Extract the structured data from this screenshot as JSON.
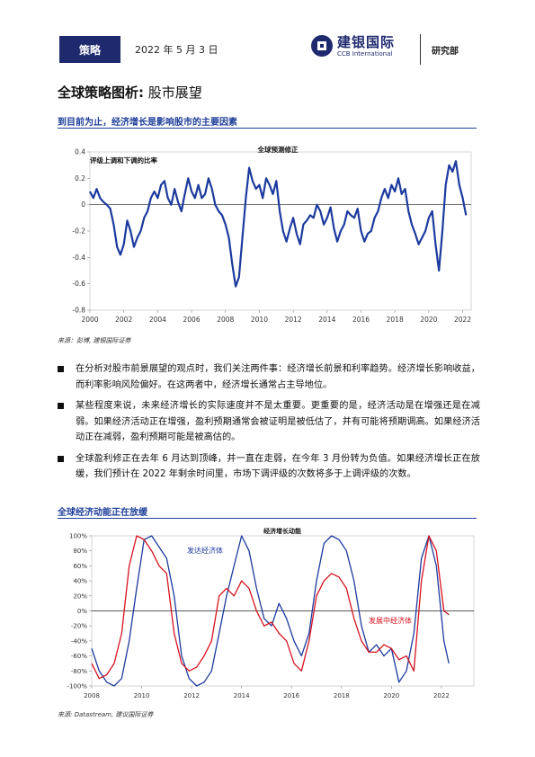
{
  "header": {
    "tag": "策略",
    "date": "2022 年 5 月 3 日",
    "brand_cn": "建银国际",
    "brand_en": "CCB International",
    "dept": "研究部"
  },
  "title": {
    "main": "全球策略图析:",
    "sub": " 股市展望"
  },
  "section1": {
    "heading": "到目前为止，经济增长是影响股市的主要因素",
    "source": "来源：彭博, 建银国际证券"
  },
  "section2": {
    "heading": "全球经济动能正在放缓",
    "source": "来源: Datastream, 建议国际证券"
  },
  "bullets": [
    "在分析对股市前景展望的观点时，我们关注两件事：经济增长前景和利率趋势。经济增长影响收益，而利率影响风险偏好。在这两者中，经济增长通常占主导地位。",
    "某些程度来说，未来经济增长的实际速度并不是太重要。更重要的是，经济活动是在增强还是在减弱。如果经济活动正在增强，盈利预期通常会被证明是被低估了，并有可能将预期调高。如果经济活动正在减弱，盈利预期可能是被高估的。",
    "全球盈利修正在去年 6 月达到顶峰，并一直在走弱，在今年 3 月份转为负值。如果经济增长正在放缓，我们预计在 2022 年剩余时间里，市场下调评级的次数将多于上调评级的次数。"
  ],
  "colors": {
    "navy": "#1f2a6e",
    "series_blue": "#1c3a9e",
    "series_red": "#d6121f",
    "heading_blue": "#1f3f9a"
  },
  "chart_data": [
    {
      "type": "line",
      "title": "全球预测修正",
      "ylabel": "评级上调和下调的比率",
      "xlim": [
        2000,
        2022.5
      ],
      "ylim": [
        -0.8,
        0.4
      ],
      "yticks": [
        0.4,
        0.2,
        0,
        -0.2,
        -0.4,
        -0.6,
        -0.8
      ],
      "yticklabels": [
        "0.4",
        "0.2",
        "0",
        "-0.2",
        "-0.4",
        "-0.6",
        "-0.8"
      ],
      "xticks": [
        2000,
        2002,
        2004,
        2006,
        2008,
        2010,
        2012,
        2014,
        2016,
        2018,
        2020,
        2022
      ],
      "grid": false,
      "series": [
        {
          "color": "#1c3a9e",
          "x": [
            2000.0,
            2000.2,
            2000.4,
            2000.6,
            2000.8,
            2001.0,
            2001.2,
            2001.4,
            2001.6,
            2001.8,
            2002.0,
            2002.2,
            2002.4,
            2002.6,
            2002.8,
            2003.0,
            2003.2,
            2003.4,
            2003.6,
            2003.8,
            2004.0,
            2004.2,
            2004.4,
            2004.6,
            2004.8,
            2005.0,
            2005.2,
            2005.4,
            2005.6,
            2005.8,
            2006.0,
            2006.2,
            2006.4,
            2006.6,
            2006.8,
            2007.0,
            2007.2,
            2007.4,
            2007.6,
            2007.8,
            2008.0,
            2008.2,
            2008.4,
            2008.6,
            2008.8,
            2009.0,
            2009.2,
            2009.4,
            2009.6,
            2009.8,
            2010.0,
            2010.2,
            2010.4,
            2010.6,
            2010.8,
            2011.0,
            2011.2,
            2011.4,
            2011.6,
            2011.8,
            2012.0,
            2012.2,
            2012.4,
            2012.6,
            2012.8,
            2013.0,
            2013.2,
            2013.4,
            2013.6,
            2013.8,
            2014.0,
            2014.2,
            2014.4,
            2014.6,
            2014.8,
            2015.0,
            2015.2,
            2015.4,
            2015.6,
            2015.8,
            2016.0,
            2016.2,
            2016.4,
            2016.6,
            2016.8,
            2017.0,
            2017.2,
            2017.4,
            2017.6,
            2017.8,
            2018.0,
            2018.2,
            2018.4,
            2018.6,
            2018.8,
            2019.0,
            2019.2,
            2019.4,
            2019.6,
            2019.8,
            2020.0,
            2020.2,
            2020.4,
            2020.6,
            2020.8,
            2021.0,
            2021.2,
            2021.4,
            2021.6,
            2021.8,
            2022.0,
            2022.2
          ],
          "y": [
            0.1,
            0.05,
            0.12,
            0.05,
            0.02,
            0.0,
            -0.03,
            -0.15,
            -0.32,
            -0.38,
            -0.3,
            -0.12,
            -0.2,
            -0.32,
            -0.25,
            -0.2,
            -0.1,
            -0.05,
            0.05,
            0.1,
            0.05,
            0.15,
            0.18,
            0.05,
            0.0,
            0.12,
            0.02,
            -0.05,
            0.08,
            0.2,
            0.1,
            0.05,
            0.15,
            0.05,
            0.08,
            0.2,
            0.12,
            0.0,
            -0.05,
            -0.08,
            -0.15,
            -0.25,
            -0.45,
            -0.62,
            -0.55,
            -0.25,
            0.05,
            0.28,
            0.18,
            0.12,
            0.15,
            0.05,
            0.2,
            0.15,
            0.08,
            0.18,
            -0.05,
            -0.2,
            -0.28,
            -0.18,
            -0.1,
            -0.22,
            -0.3,
            -0.15,
            -0.12,
            -0.08,
            -0.1,
            0.0,
            -0.05,
            -0.15,
            -0.1,
            -0.02,
            -0.18,
            -0.28,
            -0.2,
            -0.15,
            -0.05,
            -0.08,
            -0.1,
            -0.03,
            -0.2,
            -0.28,
            -0.22,
            -0.2,
            -0.1,
            -0.05,
            0.05,
            0.12,
            0.05,
            0.15,
            0.1,
            0.2,
            0.08,
            0.12,
            -0.05,
            -0.15,
            -0.22,
            -0.3,
            -0.25,
            -0.2,
            -0.1,
            -0.05,
            -0.3,
            -0.5,
            -0.2,
            0.15,
            0.3,
            0.25,
            0.33,
            0.15,
            0.05,
            -0.08
          ]
        }
      ]
    },
    {
      "type": "line",
      "title": "经济增长动能",
      "xlim": [
        2008,
        2023.3
      ],
      "ylim": [
        -100,
        100
      ],
      "yticks": [
        100,
        80,
        60,
        40,
        20,
        0,
        -20,
        -40,
        -60,
        -80,
        -100
      ],
      "yticklabels": [
        "100%",
        "80%",
        "60%",
        "40%",
        "20%",
        "0%",
        "-20%",
        "-40%",
        "-60%",
        "-80%",
        "-100%"
      ],
      "xticks": [
        2008,
        2010,
        2012,
        2014,
        2016,
        2018,
        2020,
        2022
      ],
      "grid": false,
      "annotations": [
        "发达经济体",
        "发展中经济体"
      ],
      "series": [
        {
          "name": "发达经济体",
          "color": "#1c3a9e",
          "x": [
            2008.0,
            2008.3,
            2008.6,
            2008.9,
            2009.2,
            2009.5,
            2009.8,
            2010.1,
            2010.4,
            2010.7,
            2011.0,
            2011.3,
            2011.6,
            2011.9,
            2012.2,
            2012.5,
            2012.8,
            2013.1,
            2013.4,
            2013.7,
            2014.0,
            2014.3,
            2014.6,
            2014.9,
            2015.2,
            2015.5,
            2015.8,
            2016.1,
            2016.4,
            2016.7,
            2017.0,
            2017.3,
            2017.6,
            2017.9,
            2018.2,
            2018.5,
            2018.8,
            2019.1,
            2019.4,
            2019.7,
            2020.0,
            2020.3,
            2020.6,
            2020.9,
            2021.2,
            2021.5,
            2021.8,
            2022.1,
            2022.3
          ],
          "y": [
            -50,
            -80,
            -95,
            -100,
            -90,
            -40,
            30,
            95,
            100,
            85,
            70,
            20,
            -60,
            -90,
            -100,
            -95,
            -80,
            -30,
            20,
            60,
            100,
            80,
            30,
            -10,
            -20,
            10,
            -10,
            -40,
            -60,
            -30,
            40,
            90,
            100,
            95,
            80,
            40,
            -20,
            -55,
            -45,
            -60,
            -50,
            -95,
            -80,
            -30,
            70,
            100,
            60,
            -40,
            -70
          ]
        },
        {
          "name": "发展中经济体",
          "color": "#d6121f",
          "x": [
            2008.0,
            2008.3,
            2008.6,
            2008.9,
            2009.2,
            2009.5,
            2009.8,
            2010.1,
            2010.4,
            2010.7,
            2011.0,
            2011.3,
            2011.6,
            2011.9,
            2012.2,
            2012.5,
            2012.8,
            2013.1,
            2013.4,
            2013.7,
            2014.0,
            2014.3,
            2014.6,
            2014.9,
            2015.2,
            2015.5,
            2015.8,
            2016.1,
            2016.4,
            2016.7,
            2017.0,
            2017.3,
            2017.6,
            2017.9,
            2018.2,
            2018.5,
            2018.8,
            2019.1,
            2019.4,
            2019.7,
            2020.0,
            2020.3,
            2020.6,
            2020.9,
            2021.2,
            2021.5,
            2021.8,
            2022.1,
            2022.3
          ],
          "y": [
            -70,
            -90,
            -85,
            -70,
            -30,
            60,
            100,
            95,
            80,
            60,
            50,
            -30,
            -70,
            -80,
            -75,
            -60,
            -40,
            20,
            30,
            20,
            40,
            30,
            0,
            -20,
            -15,
            -30,
            -40,
            -70,
            -80,
            -40,
            20,
            40,
            50,
            45,
            30,
            -10,
            -40,
            -55,
            -55,
            -45,
            -50,
            -65,
            -60,
            -80,
            40,
            100,
            80,
            0,
            -5
          ]
        }
      ]
    }
  ]
}
